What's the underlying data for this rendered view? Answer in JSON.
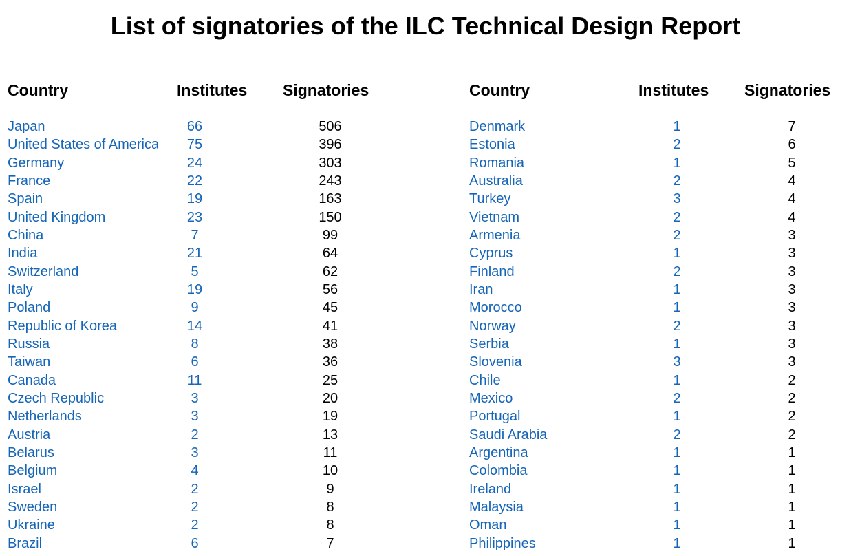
{
  "title": "List of signatories of the ILC Technical Design Report",
  "headers": {
    "country": "Country",
    "institutes": "Institutes",
    "signatories": "Signatories"
  },
  "left_table": [
    {
      "country": "Japan",
      "institutes": "66",
      "signatories": "506"
    },
    {
      "country": "United States of America",
      "institutes": "75",
      "signatories": "396"
    },
    {
      "country": "Germany",
      "institutes": "24",
      "signatories": "303"
    },
    {
      "country": "France",
      "institutes": "22",
      "signatories": "243"
    },
    {
      "country": "Spain",
      "institutes": "19",
      "signatories": "163"
    },
    {
      "country": "United Kingdom",
      "institutes": "23",
      "signatories": "150"
    },
    {
      "country": "China",
      "institutes": "7",
      "signatories": "99"
    },
    {
      "country": "India",
      "institutes": "21",
      "signatories": "64"
    },
    {
      "country": "Switzerland",
      "institutes": "5",
      "signatories": "62"
    },
    {
      "country": "Italy",
      "institutes": "19",
      "signatories": "56"
    },
    {
      "country": "Poland",
      "institutes": "9",
      "signatories": "45"
    },
    {
      "country": "Republic of Korea",
      "institutes": "14",
      "signatories": "41"
    },
    {
      "country": "Russia",
      "institutes": "8",
      "signatories": "38"
    },
    {
      "country": "Taiwan",
      "institutes": "6",
      "signatories": "36"
    },
    {
      "country": "Canada",
      "institutes": "11",
      "signatories": "25"
    },
    {
      "country": "Czech Republic",
      "institutes": "3",
      "signatories": "20"
    },
    {
      "country": "Netherlands",
      "institutes": "3",
      "signatories": "19"
    },
    {
      "country": "Austria",
      "institutes": "2",
      "signatories": "13"
    },
    {
      "country": "Belarus",
      "institutes": "3",
      "signatories": "11"
    },
    {
      "country": "Belgium",
      "institutes": "4",
      "signatories": "10"
    },
    {
      "country": "Israel",
      "institutes": "2",
      "signatories": "9"
    },
    {
      "country": "Sweden",
      "institutes": "2",
      "signatories": "8"
    },
    {
      "country": "Ukraine",
      "institutes": "2",
      "signatories": "8"
    },
    {
      "country": "Brazil",
      "institutes": "6",
      "signatories": "7"
    }
  ],
  "right_table": [
    {
      "country": "Denmark",
      "institutes": "1",
      "signatories": "7"
    },
    {
      "country": "Estonia",
      "institutes": "2",
      "signatories": "6"
    },
    {
      "country": "Romania",
      "institutes": "1",
      "signatories": "5"
    },
    {
      "country": "Australia",
      "institutes": "2",
      "signatories": "4"
    },
    {
      "country": "Turkey",
      "institutes": "3",
      "signatories": "4"
    },
    {
      "country": "Vietnam",
      "institutes": "2",
      "signatories": "4"
    },
    {
      "country": "Armenia",
      "institutes": "2",
      "signatories": "3"
    },
    {
      "country": "Cyprus",
      "institutes": "1",
      "signatories": "3"
    },
    {
      "country": "Finland",
      "institutes": "2",
      "signatories": "3"
    },
    {
      "country": "Iran",
      "institutes": "1",
      "signatories": "3"
    },
    {
      "country": "Morocco",
      "institutes": "1",
      "signatories": "3"
    },
    {
      "country": "Norway",
      "institutes": "2",
      "signatories": "3"
    },
    {
      "country": "Serbia",
      "institutes": "1",
      "signatories": "3"
    },
    {
      "country": "Slovenia",
      "institutes": "3",
      "signatories": "3"
    },
    {
      "country": "Chile",
      "institutes": "1",
      "signatories": "2"
    },
    {
      "country": "Mexico",
      "institutes": "2",
      "signatories": "2"
    },
    {
      "country": "Portugal",
      "institutes": "1",
      "signatories": "2"
    },
    {
      "country": "Saudi Arabia",
      "institutes": "2",
      "signatories": "2"
    },
    {
      "country": "Argentina",
      "institutes": "1",
      "signatories": "1"
    },
    {
      "country": "Colombia",
      "institutes": "1",
      "signatories": "1"
    },
    {
      "country": "Ireland",
      "institutes": "1",
      "signatories": "1"
    },
    {
      "country": "Malaysia",
      "institutes": "1",
      "signatories": "1"
    },
    {
      "country": "Oman",
      "institutes": "1",
      "signatories": "1"
    },
    {
      "country": "Philippines",
      "institutes": "1",
      "signatories": "1"
    }
  ],
  "colors": {
    "link_blue": "#1565b8",
    "text": "#000000",
    "background": "#ffffff"
  }
}
